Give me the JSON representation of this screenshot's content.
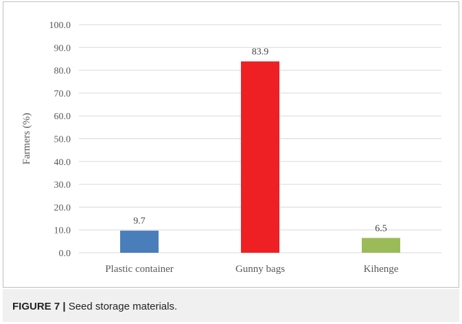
{
  "figure": {
    "caption_label": "FIGURE 7 |",
    "caption_text": " Seed storage materials."
  },
  "chart_data": {
    "type": "bar",
    "categories": [
      "Plastic container",
      "Gunny bags",
      "Kihenge"
    ],
    "values": [
      9.7,
      83.9,
      6.5
    ],
    "data_labels": [
      "9.7",
      "83.9",
      "6.5"
    ],
    "colors": [
      "#4a7ebb",
      "#ee2024",
      "#9bbb59"
    ],
    "ylabel": "Farmers (%)",
    "xlabel": "",
    "ylim": [
      0,
      100
    ],
    "yticks": [
      0,
      10,
      20,
      30,
      40,
      50,
      60,
      70,
      80,
      90,
      100
    ],
    "ytick_labels": [
      "0.0",
      "10.0",
      "20.0",
      "30.0",
      "40.0",
      "50.0",
      "60.0",
      "70.0",
      "80.0",
      "90.0",
      "100.0"
    ],
    "grid": true,
    "legend": false
  }
}
